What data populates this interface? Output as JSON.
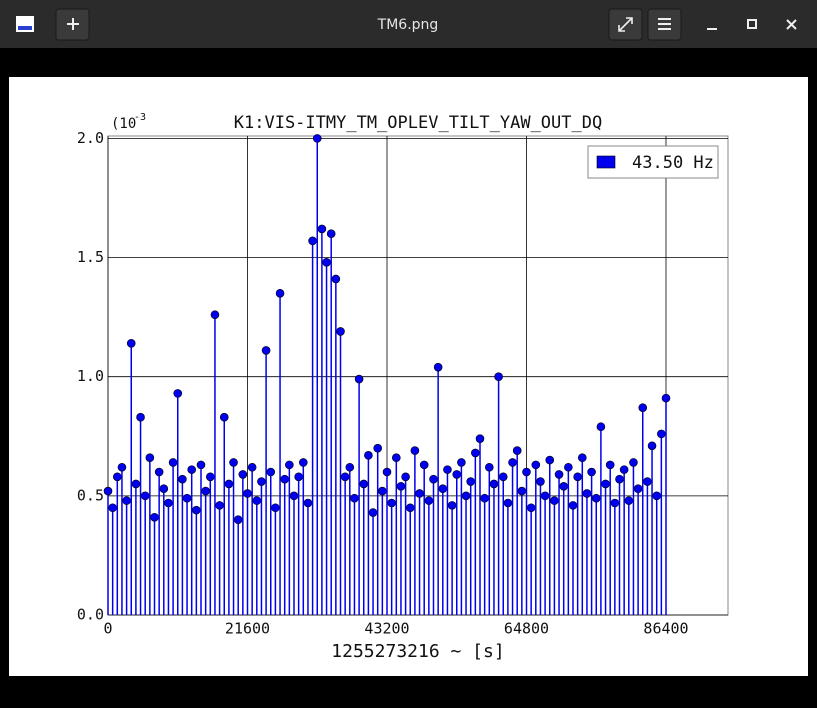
{
  "window": {
    "title": "TM6.png"
  },
  "chart_data": {
    "type": "stem",
    "title": "K1:VIS-ITMY_TM_OPLEV_TILT_YAW_OUT_DQ",
    "xlabel": "1255273216 ~ [s]",
    "scale_label": "(10",
    "scale_exponent": "-3",
    "x": [
      0,
      720,
      1440,
      2160,
      2880,
      3600,
      4320,
      5040,
      5760,
      6480,
      7200,
      7920,
      8640,
      9360,
      10080,
      10800,
      11520,
      12240,
      12960,
      13680,
      14400,
      15120,
      15840,
      16560,
      17280,
      18000,
      18720,
      19440,
      20160,
      20880,
      21600,
      22320,
      23040,
      23760,
      24480,
      25200,
      25920,
      26640,
      27360,
      28080,
      28800,
      29520,
      30240,
      30960,
      31680,
      32400,
      33120,
      33840,
      34560,
      35280,
      36000,
      36720,
      37440,
      38160,
      38880,
      39600,
      40320,
      41040,
      41760,
      42480,
      43200,
      43920,
      44640,
      45360,
      46080,
      46800,
      47520,
      48240,
      48960,
      49680,
      50400,
      51120,
      51840,
      52560,
      53280,
      54000,
      54720,
      55440,
      56160,
      56880,
      57600,
      58320,
      59040,
      59760,
      60480,
      61200,
      61920,
      62640,
      63360,
      64080,
      64800,
      65520,
      66240,
      66960,
      67680,
      68400,
      69120,
      69840,
      70560,
      71280,
      72000,
      72720,
      73440,
      74160,
      74880,
      75600,
      76320,
      77040,
      77760,
      78480,
      79200,
      79920,
      80640,
      81360,
      82080,
      82800,
      83520,
      84240,
      84960,
      85680,
      86400
    ],
    "series": [
      {
        "name": "43.50 Hz",
        "color": "#0000ee",
        "values": [
          0.52,
          0.45,
          0.58,
          0.62,
          0.48,
          1.14,
          0.55,
          0.83,
          0.5,
          0.66,
          0.41,
          0.6,
          0.53,
          0.47,
          0.64,
          0.93,
          0.57,
          0.49,
          0.61,
          0.44,
          0.63,
          0.52,
          0.58,
          1.26,
          0.46,
          0.83,
          0.55,
          0.64,
          0.4,
          0.59,
          0.51,
          0.62,
          0.48,
          0.56,
          1.11,
          0.6,
          0.45,
          1.35,
          0.57,
          0.63,
          0.5,
          0.58,
          0.64,
          0.47,
          1.57,
          2.0,
          1.62,
          1.48,
          1.6,
          1.41,
          1.19,
          0.58,
          0.62,
          0.49,
          0.99,
          0.55,
          0.67,
          0.43,
          0.7,
          0.52,
          0.6,
          0.47,
          0.66,
          0.54,
          0.58,
          0.45,
          0.69,
          0.51,
          0.63,
          0.48,
          0.57,
          1.04,
          0.53,
          0.61,
          0.46,
          0.59,
          0.64,
          0.5,
          0.56,
          0.68,
          0.74,
          0.49,
          0.62,
          0.55,
          1.0,
          0.58,
          0.47,
          0.64,
          0.69,
          0.52,
          0.6,
          0.45,
          0.63,
          0.56,
          0.5,
          0.65,
          0.48,
          0.59,
          0.54,
          0.62,
          0.46,
          0.58,
          0.66,
          0.51,
          0.6,
          0.49,
          0.79,
          0.55,
          0.63,
          0.47,
          0.57,
          0.61,
          0.48,
          0.64,
          0.53,
          0.87,
          0.56,
          0.71,
          0.5,
          0.76,
          0.91
        ]
      }
    ],
    "xlim": [
      0,
      96000
    ],
    "ylim": [
      0,
      2.01
    ],
    "xticks": [
      0,
      21600,
      43200,
      64800,
      86400
    ],
    "yticks": [
      {
        "value": 0,
        "label": "0.0"
      },
      0.5,
      {
        "value": 1,
        "label": "1.0"
      },
      1.5,
      {
        "value": 2,
        "label": "2.0"
      }
    ],
    "grid": true,
    "legend": "upper right"
  }
}
